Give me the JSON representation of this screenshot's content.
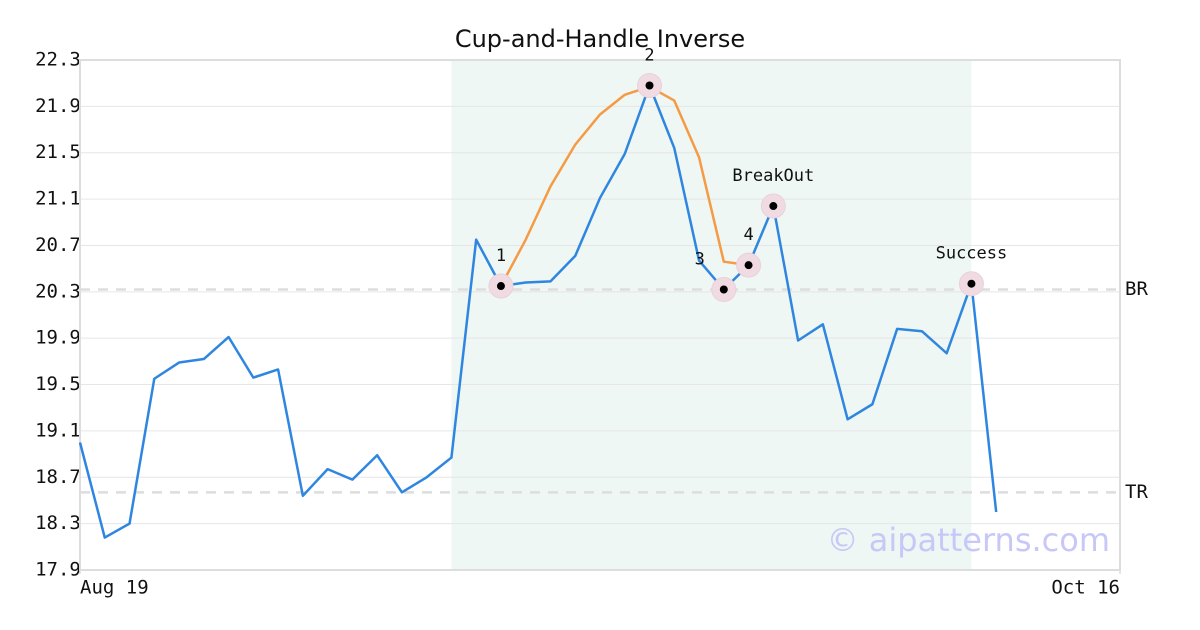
{
  "chart_data": {
    "type": "line",
    "title": "Cup-and-Handle Inverse",
    "x": [
      0,
      1,
      2,
      3,
      4,
      5,
      6,
      7,
      8,
      9,
      10,
      11,
      12,
      13,
      14,
      15,
      16,
      17,
      18,
      19,
      20,
      21,
      22,
      23,
      24,
      25,
      26,
      27,
      28,
      29,
      30,
      31,
      32,
      33,
      34,
      35,
      36,
      37
    ],
    "xlim": [
      0,
      42
    ],
    "xticks": [
      {
        "value": 0,
        "label": "Aug 19"
      },
      {
        "value": 42,
        "label": "Oct 16"
      }
    ],
    "ylim": [
      17.9,
      22.3
    ],
    "yticks": [
      17.9,
      18.3,
      18.7,
      19.1,
      19.5,
      19.9,
      20.3,
      20.7,
      21.1,
      21.5,
      21.9,
      22.3
    ],
    "grid": true,
    "series": [
      {
        "color": "#2f86e0",
        "values": [
          19.0,
          18.18,
          18.3,
          19.55,
          19.69,
          19.72,
          19.91,
          19.56,
          19.63,
          18.54,
          18.77,
          18.68,
          18.89,
          18.57,
          18.7,
          18.87,
          20.75,
          20.35,
          20.38,
          20.39,
          20.61,
          21.11,
          21.49,
          22.08,
          21.54,
          20.57,
          20.32,
          20.53,
          21.04,
          19.88,
          20.02,
          19.2,
          19.33,
          19.98,
          19.96,
          19.77,
          20.37,
          18.4
        ]
      },
      {
        "color": "#f59a45",
        "values": [
          null,
          null,
          null,
          null,
          null,
          null,
          null,
          null,
          null,
          null,
          null,
          null,
          null,
          null,
          null,
          null,
          null,
          20.35,
          20.75,
          21.21,
          21.57,
          21.83,
          22.0,
          22.07,
          21.95,
          21.46,
          20.56,
          20.53,
          null,
          null,
          null,
          null,
          null,
          null,
          null,
          null,
          null,
          null
        ]
      }
    ],
    "highlight": [
      15,
      36
    ],
    "levels": [
      {
        "label": "BR",
        "value": 20.32
      },
      {
        "label": "TR",
        "value": 18.57
      }
    ],
    "annotations": [
      {
        "label": "1",
        "x": 17,
        "y": 20.35
      },
      {
        "label": "2",
        "x": 23,
        "y": 22.08
      },
      {
        "label": "3",
        "x": 26,
        "y": 20.32
      },
      {
        "label": "4",
        "x": 27,
        "y": 20.53
      },
      {
        "label": "BreakOut",
        "x": 28,
        "y": 21.04
      },
      {
        "label": "Success",
        "x": 36,
        "y": 20.37
      }
    ],
    "watermark": "© aipatterns.com"
  }
}
